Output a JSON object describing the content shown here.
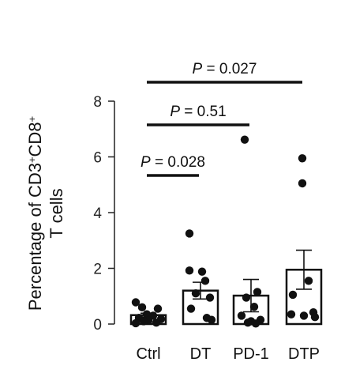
{
  "chart_data": {
    "type": "bar",
    "title": "",
    "xlabel": "",
    "ylabel_line1": "Percentage of CD3",
    "ylabel_sup1": "+",
    "ylabel_mid": "CD8",
    "ylabel_sup2": "+",
    "ylabel_line2": "T cells",
    "ylim": [
      0,
      8
    ],
    "yticks": [
      0,
      2,
      4,
      6,
      8
    ],
    "categories": [
      "Ctrl",
      "DT",
      "PD-1",
      "DTP"
    ],
    "means": [
      0.32,
      1.2,
      1.02,
      1.95
    ],
    "sem": [
      0.07,
      0.3,
      0.58,
      0.7
    ],
    "points": [
      [
        0.78,
        0.6,
        0.55,
        0.35,
        0.3,
        0.22,
        0.18,
        0.12,
        0.1,
        0.05,
        0.03
      ],
      [
        3.25,
        1.92,
        1.88,
        1.55,
        1.1,
        0.95,
        0.55,
        0.22,
        0.15
      ],
      [
        6.62,
        1.15,
        0.95,
        0.62,
        0.3,
        0.15,
        0.1,
        0.05,
        0.02
      ],
      [
        5.95,
        5.05,
        1.55,
        1.05,
        0.42,
        0.35,
        0.3,
        0.25
      ]
    ],
    "comparisons": [
      {
        "from": 0,
        "to": 1,
        "label": "P = 0.028"
      },
      {
        "from": 0,
        "to": 2,
        "label": "P = 0.51"
      },
      {
        "from": 0,
        "to": 3,
        "label": "P = 0.027"
      }
    ],
    "colors": {
      "bar": "#111111",
      "point": "#111111"
    }
  }
}
